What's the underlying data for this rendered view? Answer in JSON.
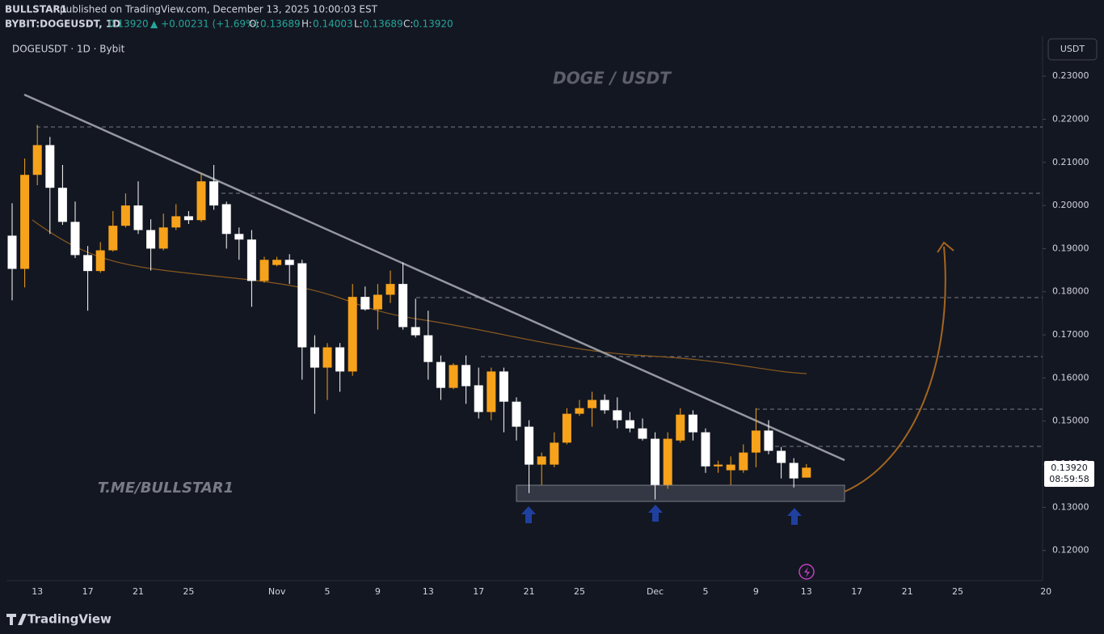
{
  "header": {
    "publisher": "BULLSTAR1",
    "published": "published on TradingView.com, December 13, 2025 10:00:03 EST",
    "symbol": "BYBIT:DOGEUSDT, 1D",
    "last": "0.13920",
    "change": "▲ +0.00231 (+1.69%)",
    "o_label": "O:",
    "o": "0.13689",
    "h_label": "H:",
    "h": "0.14003",
    "l_label": "L:",
    "l": "0.13689",
    "c_label": "C:",
    "c": "0.13920"
  },
  "legend": "DOGEUSDT · 1D · Bybit",
  "currency": "USDT",
  "watermark": "DOGE / USDT",
  "channel": "T.ME/BULLSTAR1",
  "price_tag": {
    "price": "0.13920",
    "countdown": "08:59:58"
  },
  "footer": "TradingView",
  "chart_data": {
    "type": "candlestick",
    "up_color": "#f7a21b",
    "down_color": "#ffffff",
    "categories": [
      null,
      null,
      "13",
      null,
      null,
      null,
      "17",
      null,
      null,
      null,
      "21",
      null,
      null,
      null,
      "25",
      null,
      null,
      null,
      null,
      null,
      null,
      "Nov",
      null,
      null,
      null,
      "5",
      null,
      null,
      null,
      "9",
      null,
      null,
      null,
      "13",
      null,
      null,
      null,
      "17",
      null,
      null,
      null,
      "21",
      null,
      null,
      null,
      "25",
      null,
      null,
      null,
      null,
      null,
      "Dec",
      null,
      null,
      null,
      "5",
      null,
      null,
      null,
      "9",
      null,
      null,
      null,
      "13",
      null,
      null,
      null,
      "17",
      null,
      null,
      null,
      "21",
      null,
      null,
      null,
      "25",
      null,
      null,
      null,
      null,
      null,
      null,
      "20"
    ],
    "open": [
      0.193,
      0.1853,
      0.2071,
      0.214,
      0.2041,
      0.1962,
      0.1885,
      0.1848,
      0.1896,
      0.1953,
      0.2,
      0.1943,
      0.19,
      0.1949,
      0.1975,
      0.1966,
      0.2056,
      0.2003,
      0.1934,
      0.1921,
      0.1825,
      0.1862,
      0.1874,
      0.1866,
      0.1671,
      0.1624,
      0.1671,
      0.1615,
      0.1788,
      0.1759,
      0.1793,
      0.1818,
      0.1718,
      0.1699,
      0.1637,
      0.1577,
      0.163,
      0.1583,
      0.1521,
      0.1615,
      0.1545,
      0.1487,
      0.1399,
      0.1399,
      0.145,
      0.1517,
      0.153,
      0.1549,
      0.1525,
      0.1502,
      0.1483,
      0.1459,
      0.1352,
      0.1455,
      0.1515,
      0.1474,
      0.1395,
      0.1386,
      0.1386,
      0.1427,
      0.1478,
      0.1431,
      0.1403,
      0.13689,
      null,
      null,
      null,
      null,
      null,
      null,
      null,
      null,
      null,
      null,
      null,
      null,
      null,
      null,
      null,
      null,
      null,
      null,
      null
    ],
    "high": [
      0.2005,
      0.2109,
      0.2187,
      0.2159,
      0.2094,
      0.2009,
      0.1906,
      0.1915,
      0.1987,
      0.2028,
      0.2056,
      0.1968,
      0.1981,
      0.2003,
      0.1987,
      0.2075,
      0.2094,
      0.2009,
      0.1949,
      0.1943,
      0.1881,
      0.1881,
      0.1887,
      0.1874,
      0.1699,
      0.1681,
      0.1681,
      0.1818,
      0.1812,
      0.1818,
      0.1849,
      0.1868,
      0.1784,
      0.1756,
      0.1652,
      0.1634,
      0.1652,
      0.1624,
      0.1624,
      0.1624,
      0.1555,
      0.1502,
      0.1427,
      0.1474,
      0.153,
      0.1549,
      0.1568,
      0.1562,
      0.1555,
      0.1521,
      0.1506,
      0.1474,
      0.1474,
      0.153,
      0.1525,
      0.1483,
      0.1408,
      0.1418,
      0.1446,
      0.153,
      0.1502,
      0.144,
      0.1414,
      0.14003,
      null,
      null,
      null,
      null,
      null,
      null,
      null,
      null,
      null,
      null,
      null,
      null,
      null,
      null,
      null,
      null,
      null,
      null,
      null
    ],
    "low": [
      0.178,
      0.181,
      0.2047,
      0.1934,
      0.1955,
      0.1878,
      0.1756,
      0.1844,
      0.1893,
      0.1949,
      0.1934,
      0.1849,
      0.1896,
      0.1943,
      0.1957,
      0.1962,
      0.199,
      0.19,
      0.1874,
      0.1765,
      0.1821,
      0.1859,
      0.1818,
      0.1596,
      0.1517,
      0.1549,
      0.1568,
      0.1605,
      0.1756,
      0.1712,
      0.1774,
      0.1712,
      0.1694,
      0.1596,
      0.1549,
      0.1574,
      0.154,
      0.1506,
      0.1502,
      0.1474,
      0.1455,
      0.1333,
      0.1352,
      0.1393,
      0.1446,
      0.1512,
      0.1487,
      0.1517,
      0.1483,
      0.1474,
      0.1455,
      0.1318,
      0.1343,
      0.145,
      0.1455,
      0.138,
      0.138,
      0.1352,
      0.138,
      0.1393,
      0.1423,
      0.1367,
      0.1346,
      0.13689,
      null,
      null,
      null,
      null,
      null,
      null,
      null,
      null,
      null,
      null,
      null,
      null,
      null,
      null,
      null,
      null,
      null,
      null,
      null
    ],
    "close": [
      0.1853,
      0.2071,
      0.214,
      0.2041,
      0.1962,
      0.1885,
      0.1848,
      0.1896,
      0.1953,
      0.2,
      0.1943,
      0.19,
      0.1949,
      0.1975,
      0.1966,
      0.2056,
      0.2,
      0.1934,
      0.1921,
      0.1825,
      0.1874,
      0.1874,
      0.1862,
      0.1671,
      0.1624,
      0.1671,
      0.1615,
      0.1788,
      0.1759,
      0.1793,
      0.1818,
      0.1718,
      0.1699,
      0.1637,
      0.1577,
      0.163,
      0.1581,
      0.1521,
      0.1615,
      0.1545,
      0.1487,
      0.1399,
      0.1418,
      0.145,
      0.1517,
      0.153,
      0.1549,
      0.1525,
      0.1502,
      0.1483,
      0.1459,
      0.1352,
      0.1459,
      0.1515,
      0.1474,
      0.1395,
      0.1399,
      0.1399,
      0.1427,
      0.1478,
      0.1431,
      0.1403,
      0.1367,
      0.1392,
      null,
      null,
      null,
      null,
      null,
      null,
      null,
      null,
      null,
      null,
      null,
      null,
      null,
      null,
      null,
      null,
      null,
      null,
      null
    ],
    "ylim": [
      0.113,
      0.2394
    ],
    "yticks": [
      {
        "value": 0.12,
        "label": "0.12000"
      },
      {
        "value": 0.13,
        "label": "0.13000"
      },
      {
        "value": 0.14,
        "label": "0.14000"
      },
      {
        "value": 0.15,
        "label": "0.15000"
      },
      {
        "value": 0.16,
        "label": "0.16000"
      },
      {
        "value": 0.17,
        "label": "0.17000"
      },
      {
        "value": 0.18,
        "label": "0.18000"
      },
      {
        "value": 0.19,
        "label": "0.19000"
      },
      {
        "value": 0.2,
        "label": "0.20000"
      },
      {
        "value": 0.21,
        "label": "0.21000"
      },
      {
        "value": 0.22,
        "label": "0.22000"
      },
      {
        "value": 0.23,
        "label": "0.23000"
      }
    ]
  }
}
